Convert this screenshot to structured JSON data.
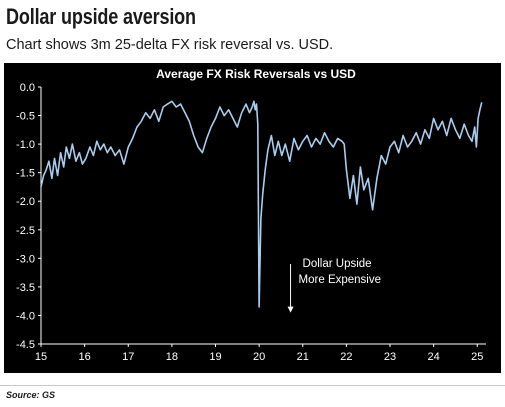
{
  "header": {
    "title": "Dollar upside aversion",
    "subtitle": "Chart shows 3m 25-delta FX risk reversal vs. USD."
  },
  "source": "Source: GS",
  "chart_data": {
    "type": "line",
    "title": "Average FX Risk Reversals vs USD",
    "xlabel": "",
    "ylabel": "",
    "x_tick_labels": [
      "15",
      "16",
      "17",
      "18",
      "19",
      "20",
      "21",
      "22",
      "23",
      "24",
      "25"
    ],
    "y_tick_labels": [
      "0.0",
      "-0.5",
      "-1.0",
      "-1.5",
      "-2.0",
      "-2.5",
      "-3.0",
      "-3.5",
      "-4.0",
      "-4.5"
    ],
    "xlim": [
      2015,
      2025.2
    ],
    "ylim": [
      -4.5,
      0
    ],
    "grid": false,
    "legend": "none",
    "colors": {
      "background": "#000000",
      "line": "#a9cdee",
      "axis": "#ffffff",
      "text": "#ffffff"
    },
    "annotation": {
      "line1": "Dollar Upside",
      "line2": "More Expensive",
      "x": 2020.72,
      "y_top": -3.1,
      "y_bottom": -3.95
    },
    "series": [
      {
        "x": [
          2015.0,
          2015.06,
          2015.12,
          2015.18,
          2015.25,
          2015.31,
          2015.38,
          2015.45,
          2015.52,
          2015.58,
          2015.65,
          2015.72,
          2015.8,
          2015.88,
          2015.95,
          2016.03,
          2016.12,
          2016.2,
          2016.28,
          2016.36,
          2016.44,
          2016.52,
          2016.6,
          2016.7,
          2016.8,
          2016.9,
          2017.0,
          2017.1,
          2017.2,
          2017.3,
          2017.4,
          2017.5,
          2017.6,
          2017.7,
          2017.8,
          2017.9,
          2018.0,
          2018.1,
          2018.2,
          2018.3,
          2018.4,
          2018.5,
          2018.6,
          2018.7,
          2018.8,
          2018.9,
          2019.0,
          2019.1,
          2019.2,
          2019.3,
          2019.4,
          2019.5,
          2019.6,
          2019.7,
          2019.78,
          2019.84,
          2019.88,
          2019.91,
          2019.94,
          2019.97,
          2020.0,
          2020.04,
          2020.08,
          2020.14,
          2020.2,
          2020.28,
          2020.36,
          2020.44,
          2020.52,
          2020.6,
          2020.7,
          2020.8,
          2020.9,
          2021.0,
          2021.1,
          2021.2,
          2021.3,
          2021.4,
          2021.5,
          2021.6,
          2021.7,
          2021.8,
          2021.9,
          2021.95,
          2022.0,
          2022.08,
          2022.16,
          2022.24,
          2022.32,
          2022.4,
          2022.5,
          2022.6,
          2022.7,
          2022.8,
          2022.9,
          2023.0,
          2023.1,
          2023.2,
          2023.3,
          2023.4,
          2023.5,
          2023.6,
          2023.7,
          2023.8,
          2023.9,
          2024.0,
          2024.1,
          2024.2,
          2024.3,
          2024.4,
          2024.5,
          2024.6,
          2024.7,
          2024.8,
          2024.88,
          2024.94,
          2024.98,
          2025.02,
          2025.06,
          2025.1
        ],
        "y": [
          -1.75,
          -1.55,
          -1.45,
          -1.3,
          -1.6,
          -1.25,
          -1.55,
          -1.15,
          -1.4,
          -1.05,
          -1.25,
          -1.0,
          -1.3,
          -1.15,
          -1.35,
          -1.25,
          -1.05,
          -1.2,
          -0.95,
          -1.1,
          -1.0,
          -1.15,
          -1.05,
          -1.2,
          -1.1,
          -1.35,
          -1.05,
          -0.9,
          -0.7,
          -0.6,
          -0.45,
          -0.55,
          -0.4,
          -0.6,
          -0.35,
          -0.3,
          -0.25,
          -0.35,
          -0.3,
          -0.45,
          -0.6,
          -0.85,
          -1.05,
          -1.15,
          -0.9,
          -0.7,
          -0.55,
          -0.35,
          -0.5,
          -0.4,
          -0.55,
          -0.7,
          -0.45,
          -0.3,
          -0.45,
          -0.35,
          -0.25,
          -0.4,
          -0.3,
          -0.65,
          -3.85,
          -2.3,
          -1.9,
          -1.45,
          -1.1,
          -0.85,
          -1.2,
          -0.95,
          -1.2,
          -1.0,
          -1.3,
          -0.9,
          -1.1,
          -0.95,
          -0.85,
          -1.05,
          -0.9,
          -1.0,
          -0.8,
          -0.95,
          -1.05,
          -0.9,
          -0.95,
          -1.0,
          -1.45,
          -1.95,
          -1.55,
          -2.05,
          -1.4,
          -1.8,
          -1.6,
          -2.15,
          -1.6,
          -1.2,
          -1.35,
          -1.05,
          -0.95,
          -1.15,
          -0.85,
          -1.05,
          -0.95,
          -0.8,
          -1.0,
          -0.75,
          -0.9,
          -0.55,
          -0.75,
          -0.6,
          -0.85,
          -0.55,
          -0.75,
          -0.9,
          -0.65,
          -0.85,
          -0.95,
          -0.7,
          -1.05,
          -0.55,
          -0.4,
          -0.28
        ]
      }
    ]
  }
}
